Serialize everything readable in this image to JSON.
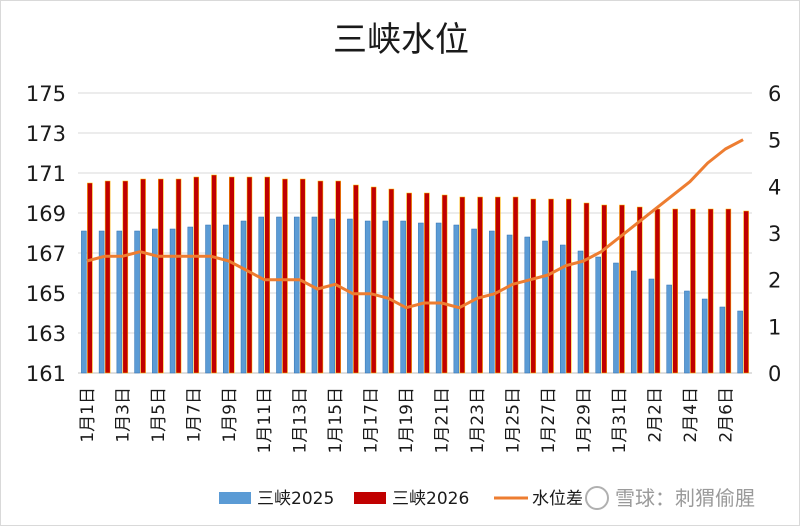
{
  "chart_data": {
    "type": "bar+line",
    "title": "三峡水位",
    "legend_position": "bottom",
    "grid": true,
    "y_left": {
      "min": 161,
      "max": 175,
      "ticks": [
        "161",
        "163",
        "165",
        "167",
        "169",
        "171",
        "173",
        "175"
      ]
    },
    "y_right": {
      "min": 0,
      "max": 6,
      "ticks": [
        "0",
        "1",
        "2",
        "3",
        "4",
        "5",
        "6"
      ]
    },
    "categories": [
      "1月1日",
      "1月2日",
      "1月3日",
      "1月4日",
      "1月5日",
      "1月6日",
      "1月7日",
      "1月8日",
      "1月9日",
      "1月10日",
      "1月11日",
      "1月12日",
      "1月13日",
      "1月14日",
      "1月15日",
      "1月16日",
      "1月17日",
      "1月18日",
      "1月19日",
      "1月20日",
      "1月21日",
      "1月22日",
      "1月23日",
      "1月24日",
      "1月25日",
      "1月26日",
      "1月27日",
      "1月28日",
      "1月29日",
      "1月30日",
      "1月31日",
      "2月1日",
      "2月2日",
      "2月3日",
      "2月4日",
      "2月5日",
      "2月6日",
      "2月7日"
    ],
    "x_tick_labels": [
      "1月1日",
      "1月3日",
      "1月5日",
      "1月7日",
      "1月9日",
      "1月11日",
      "1月13日",
      "1月15日",
      "1月17日",
      "1月19日",
      "1月21日",
      "1月23日",
      "1月25日",
      "1月27日",
      "1月29日",
      "1月31日",
      "2月2日",
      "2月4日",
      "2月6日"
    ],
    "series": [
      {
        "name": "三峡2025",
        "type": "bar",
        "axis": "left",
        "color": "#5b9bd5",
        "values": [
          168.1,
          168.1,
          168.1,
          168.1,
          168.2,
          168.2,
          168.3,
          168.4,
          168.4,
          168.6,
          168.8,
          168.8,
          168.8,
          168.8,
          168.7,
          168.7,
          168.6,
          168.6,
          168.6,
          168.5,
          168.5,
          168.4,
          168.2,
          168.1,
          167.9,
          167.8,
          167.6,
          167.4,
          167.1,
          166.8,
          166.5,
          166.1,
          165.7,
          165.4,
          165.1,
          164.7,
          164.3,
          164.1
        ]
      },
      {
        "name": "三峡2026",
        "type": "bar",
        "axis": "left",
        "color": "#c00000",
        "values": [
          170.5,
          170.6,
          170.6,
          170.7,
          170.7,
          170.7,
          170.8,
          170.9,
          170.8,
          170.8,
          170.8,
          170.7,
          170.7,
          170.6,
          170.6,
          170.4,
          170.3,
          170.2,
          170.0,
          170.0,
          169.9,
          169.8,
          169.8,
          169.8,
          169.8,
          169.7,
          169.7,
          169.7,
          169.5,
          169.4,
          169.4,
          169.3,
          169.2,
          169.2,
          169.2,
          169.2,
          169.2,
          169.1
        ]
      },
      {
        "name": "水位差",
        "type": "line",
        "axis": "right",
        "color": "#ed7d31",
        "values": [
          2.4,
          2.5,
          2.5,
          2.6,
          2.5,
          2.5,
          2.5,
          2.5,
          2.4,
          2.2,
          2.0,
          2.0,
          2.0,
          1.8,
          1.9,
          1.7,
          1.7,
          1.6,
          1.4,
          1.5,
          1.5,
          1.4,
          1.6,
          1.7,
          1.9,
          2.0,
          2.1,
          2.3,
          2.4,
          2.6,
          2.9,
          3.2,
          3.5,
          3.8,
          4.1,
          4.5,
          4.8,
          5.0
        ]
      }
    ]
  },
  "watermark": "雪球：刺猬偷腥"
}
